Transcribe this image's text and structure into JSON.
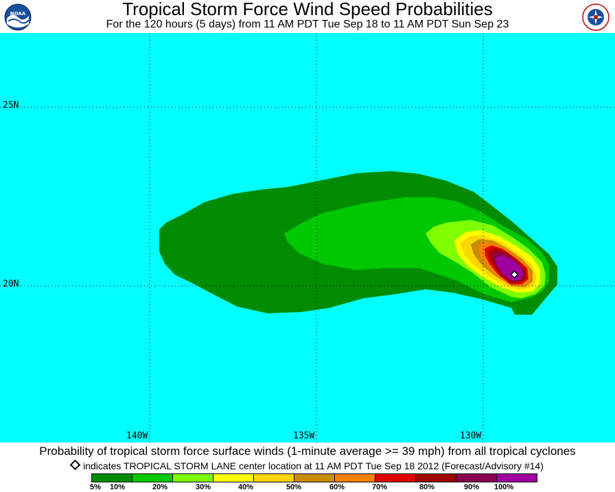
{
  "header": {
    "title": "Tropical Storm Force Wind Speed Probabilities",
    "subtitle": "For the 120 hours (5 days) from 11 AM PDT Tue Sep 18 to 11 AM PDT Sun Sep 23",
    "logo_left_icon": "noaa-logo-icon",
    "logo_right_icon": "nws-logo-icon"
  },
  "map": {
    "background_color": "#00ffff",
    "lat_labels": [
      "25N",
      "20N"
    ],
    "lon_labels": [
      "140W",
      "135W",
      "130W"
    ],
    "storm_name": "TROPICAL STORM LANE",
    "contour_colors": {
      "5": "#008c00",
      "10": "#00c800",
      "20": "#80ff00",
      "30": "#ffff00",
      "40": "#ffd700",
      "50": "#c88c00",
      "60": "#ff8000",
      "70": "#e00000",
      "80": "#a00000",
      "90": "#8b0050",
      "100": "#a000a0"
    }
  },
  "footer": {
    "description": "Probability of tropical storm force surface winds (1-minute average >= 39 mph) from all tropical cyclones",
    "indicator_text": "indicates TROPICAL STORM LANE center location at 11 AM PDT Tue Sep 18 2012 (Forecast/Advisory #14)"
  },
  "legend": {
    "colors": [
      "#008c00",
      "#00c800",
      "#80ff00",
      "#ffff00",
      "#ffd700",
      "#c88c00",
      "#ff8000",
      "#e00000",
      "#a00000",
      "#8b0050",
      "#a000a0"
    ],
    "labels": [
      "5%",
      "10%",
      "20%",
      "30%",
      "40%",
      "50%",
      "60%",
      "70%",
      "80%",
      "90%",
      "100%"
    ]
  }
}
